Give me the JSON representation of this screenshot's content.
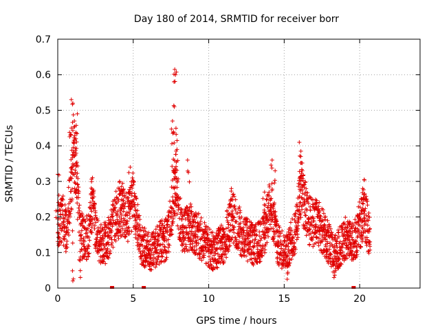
{
  "chart_data": {
    "type": "scatter",
    "title": "Day 180 of 2014, SRMTID for receiver borr",
    "xlabel": "GPS time / hours",
    "ylabel": "SRMTID / TECUs",
    "xlim": [
      0,
      24
    ],
    "ylim": [
      0,
      0.7
    ],
    "x_ticks": [
      0,
      5,
      10,
      15,
      20
    ],
    "x_tick_labels": [
      "0",
      "5",
      "10",
      "15",
      "20"
    ],
    "y_ticks": [
      0,
      0.1,
      0.2,
      0.3,
      0.4,
      0.5,
      0.6,
      0.7
    ],
    "y_tick_labels": [
      "0",
      "0.1",
      "0.2",
      "0.3",
      "0.4",
      "0.5",
      "0.6",
      "0.7"
    ],
    "grid": true,
    "marker": "plus",
    "color": "#e00000",
    "x_range_of_data": [
      0,
      20.7
    ],
    "zero_markers_x": [
      3.6,
      5.7,
      19.6
    ],
    "envelope": [
      {
        "x": 0.0,
        "y": 0.17
      },
      {
        "x": 0.3,
        "y": 0.2
      },
      {
        "x": 0.6,
        "y": 0.16
      },
      {
        "x": 0.9,
        "y": 0.3
      },
      {
        "x": 1.0,
        "y": 0.4
      },
      {
        "x": 1.2,
        "y": 0.35
      },
      {
        "x": 1.5,
        "y": 0.15
      },
      {
        "x": 2.0,
        "y": 0.14
      },
      {
        "x": 2.3,
        "y": 0.22
      },
      {
        "x": 2.8,
        "y": 0.12
      },
      {
        "x": 3.3,
        "y": 0.13
      },
      {
        "x": 3.8,
        "y": 0.2
      },
      {
        "x": 4.3,
        "y": 0.22
      },
      {
        "x": 4.7,
        "y": 0.2
      },
      {
        "x": 5.0,
        "y": 0.25
      },
      {
        "x": 5.5,
        "y": 0.12
      },
      {
        "x": 6.2,
        "y": 0.1
      },
      {
        "x": 6.8,
        "y": 0.13
      },
      {
        "x": 7.3,
        "y": 0.14
      },
      {
        "x": 7.8,
        "y": 0.3
      },
      {
        "x": 8.2,
        "y": 0.16
      },
      {
        "x": 8.8,
        "y": 0.17
      },
      {
        "x": 9.5,
        "y": 0.14
      },
      {
        "x": 10.3,
        "y": 0.1
      },
      {
        "x": 11.0,
        "y": 0.13
      },
      {
        "x": 11.6,
        "y": 0.2
      },
      {
        "x": 12.2,
        "y": 0.15
      },
      {
        "x": 13.0,
        "y": 0.12
      },
      {
        "x": 13.6,
        "y": 0.14
      },
      {
        "x": 14.1,
        "y": 0.24
      },
      {
        "x": 14.6,
        "y": 0.12
      },
      {
        "x": 15.2,
        "y": 0.1
      },
      {
        "x": 15.8,
        "y": 0.17
      },
      {
        "x": 16.1,
        "y": 0.28
      },
      {
        "x": 16.6,
        "y": 0.19
      },
      {
        "x": 17.3,
        "y": 0.18
      },
      {
        "x": 17.9,
        "y": 0.13
      },
      {
        "x": 18.3,
        "y": 0.09
      },
      {
        "x": 19.0,
        "y": 0.14
      },
      {
        "x": 19.6,
        "y": 0.12
      },
      {
        "x": 20.0,
        "y": 0.18
      },
      {
        "x": 20.4,
        "y": 0.2
      },
      {
        "x": 20.7,
        "y": 0.14
      }
    ],
    "spikes": [
      {
        "x": 0.0,
        "y": 0.32
      },
      {
        "x": 0.9,
        "y": 0.53
      },
      {
        "x": 1.0,
        "y": 0.52
      },
      {
        "x": 1.1,
        "y": 0.47
      },
      {
        "x": 1.3,
        "y": 0.49
      },
      {
        "x": 1.2,
        "y": 0.42
      },
      {
        "x": 2.3,
        "y": 0.31
      },
      {
        "x": 4.1,
        "y": 0.3
      },
      {
        "x": 4.8,
        "y": 0.34
      },
      {
        "x": 7.6,
        "y": 0.47
      },
      {
        "x": 7.7,
        "y": 0.58
      },
      {
        "x": 7.75,
        "y": 0.615
      },
      {
        "x": 7.8,
        "y": 0.6
      },
      {
        "x": 7.72,
        "y": 0.51
      },
      {
        "x": 7.9,
        "y": 0.39
      },
      {
        "x": 8.6,
        "y": 0.36
      },
      {
        "x": 11.5,
        "y": 0.28
      },
      {
        "x": 13.7,
        "y": 0.27
      },
      {
        "x": 14.2,
        "y": 0.36
      },
      {
        "x": 14.4,
        "y": 0.33
      },
      {
        "x": 16.0,
        "y": 0.41
      },
      {
        "x": 16.1,
        "y": 0.37
      },
      {
        "x": 16.2,
        "y": 0.33
      },
      {
        "x": 20.3,
        "y": 0.305
      },
      {
        "x": 20.2,
        "y": 0.28
      },
      {
        "x": 1.0,
        "y": 0.02
      },
      {
        "x": 1.5,
        "y": 0.03
      },
      {
        "x": 15.2,
        "y": 0.025
      },
      {
        "x": 18.3,
        "y": 0.03
      }
    ]
  }
}
